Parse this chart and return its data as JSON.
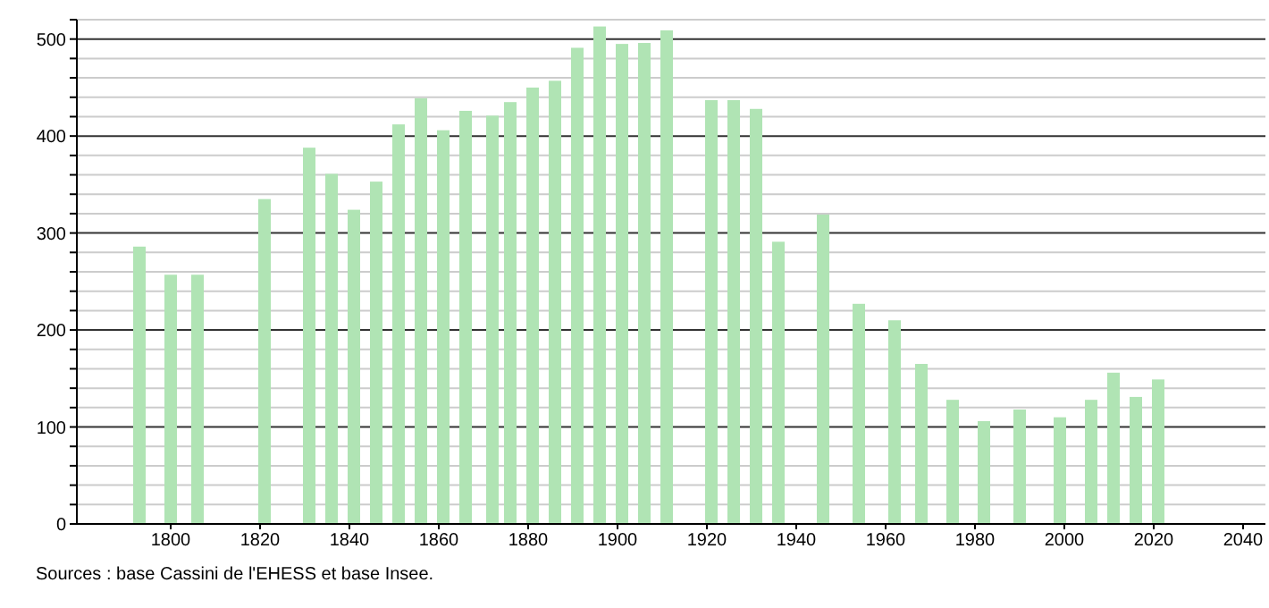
{
  "chart_data": {
    "type": "bar",
    "x": [
      1793,
      1800,
      1806,
      1821,
      1831,
      1836,
      1841,
      1846,
      1851,
      1856,
      1861,
      1866,
      1872,
      1876,
      1881,
      1886,
      1891,
      1896,
      1901,
      1906,
      1911,
      1921,
      1926,
      1931,
      1936,
      1946,
      1954,
      1962,
      1968,
      1975,
      1982,
      1990,
      1999,
      2006,
      2011,
      2016,
      2021
    ],
    "values": [
      286,
      257,
      257,
      335,
      388,
      361,
      324,
      353,
      412,
      439,
      406,
      426,
      421,
      435,
      450,
      457,
      491,
      513,
      495,
      496,
      509,
      437,
      437,
      428,
      291,
      319,
      227,
      210,
      165,
      128,
      106,
      118,
      110,
      128,
      156,
      131,
      149
    ],
    "color": "#b0e4b4",
    "xlim": [
      1779,
      2045
    ],
    "xticks": [
      1800,
      1820,
      1840,
      1860,
      1880,
      1900,
      1920,
      1940,
      1960,
      1980,
      2000,
      2020,
      2040
    ],
    "ylim": [
      0,
      520
    ],
    "yticks": [
      0,
      {
        "value": 20,
        "label": null
      },
      {
        "value": 40,
        "label": null
      },
      {
        "value": 60,
        "label": null
      },
      {
        "value": 80,
        "label": null
      },
      100,
      {
        "value": 120,
        "label": null
      },
      {
        "value": 140,
        "label": null
      },
      {
        "value": 160,
        "label": null
      },
      {
        "value": 180,
        "label": null
      },
      200,
      {
        "value": 220,
        "label": null
      },
      {
        "value": 240,
        "label": null
      },
      {
        "value": 260,
        "label": null
      },
      {
        "value": 280,
        "label": null
      },
      300,
      {
        "value": 320,
        "label": null
      },
      {
        "value": 340,
        "label": null
      },
      {
        "value": 360,
        "label": null
      },
      {
        "value": 380,
        "label": null
      },
      400,
      {
        "value": 420,
        "label": null
      },
      {
        "value": 440,
        "label": null
      },
      {
        "value": 460,
        "label": null
      },
      {
        "value": 480,
        "label": null
      },
      500,
      {
        "value": 520,
        "label": null
      }
    ],
    "grid": "y",
    "annotations": [
      "Sources : base Cassini de l'EHESS et base Insee."
    ]
  }
}
